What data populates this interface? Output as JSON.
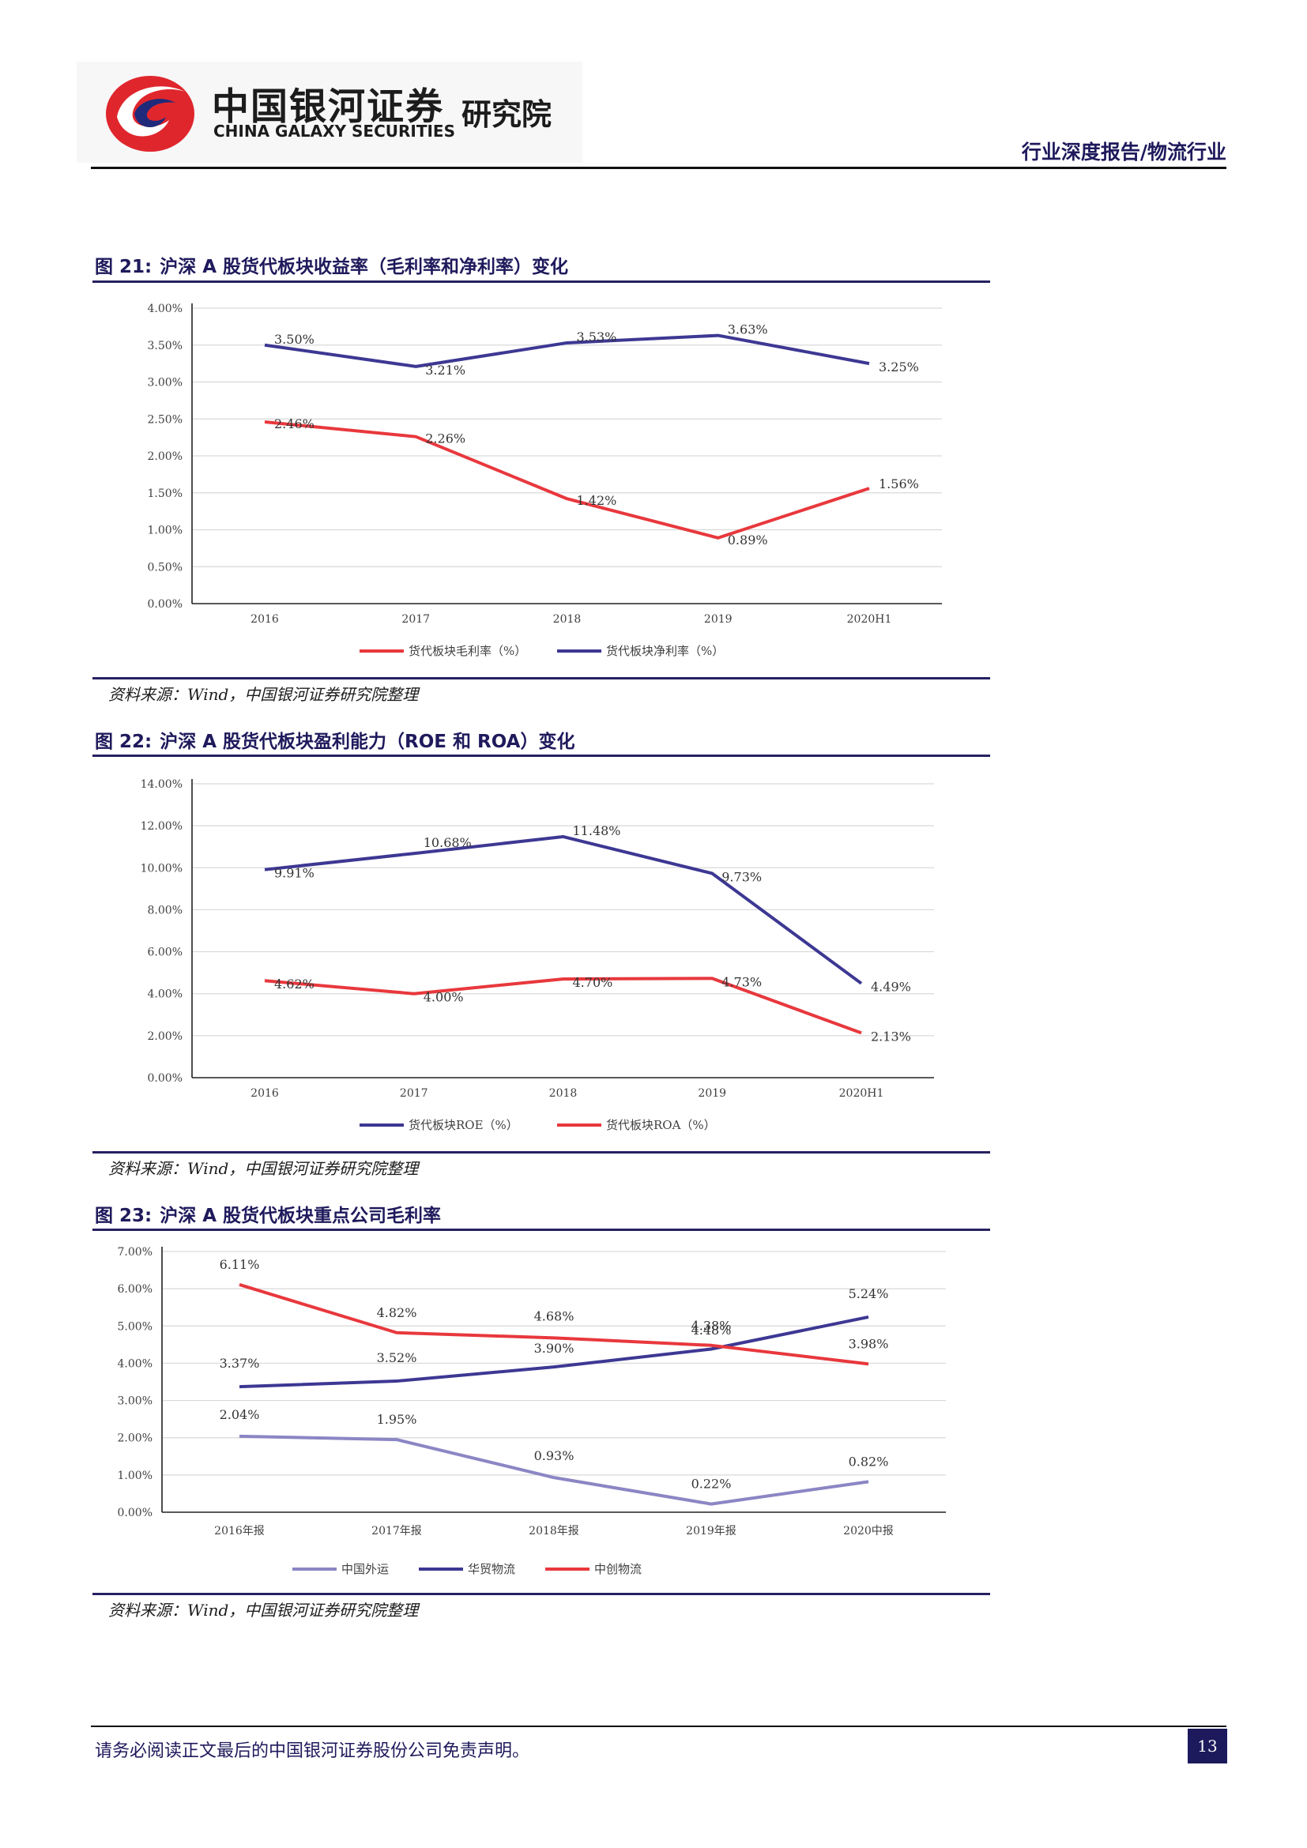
{
  "header": {
    "logo_cn": "中国银河证券",
    "logo_en": "CHINA GALAXY SECURITIES",
    "logo_institute": "研究院",
    "category": "行业深度报告/物流行业"
  },
  "figures": [
    {
      "number": "图 21:",
      "title": "沪深 A 股货代板块收益率（毛利率和净利率）变化",
      "source": "资料来源：Wind，中国银河证券研究院整理"
    },
    {
      "number": "图 22:",
      "title": "沪深 A 股货代板块盈利能力（ROE 和 ROA）变化",
      "source": "资料来源：Wind，中国银河证券研究院整理"
    },
    {
      "number": "图 23:",
      "title": "沪深 A 股货代板块重点公司毛利率",
      "source": "资料来源：Wind，中国银河证券研究院整理"
    }
  ],
  "chart_data": [
    {
      "type": "line",
      "categories": [
        "2016",
        "2017",
        "2018",
        "2019",
        "2020H1"
      ],
      "ylim": [
        0,
        4
      ],
      "yticks": [
        "0.00%",
        "0.50%",
        "1.00%",
        "1.50%",
        "2.00%",
        "2.50%",
        "3.00%",
        "3.50%",
        "4.00%"
      ],
      "grid": true,
      "legend_position": "bottom",
      "series": [
        {
          "name": "货代板块毛利率（%）",
          "color": "#e8383d",
          "values": [
            2.46,
            2.26,
            1.42,
            0.89,
            1.56
          ],
          "labels": [
            "2.46%",
            "2.26%",
            "1.42%",
            "0.89%",
            "1.56%"
          ]
        },
        {
          "name": "货代板块净利率（%）",
          "color": "#3d3893",
          "values": [
            3.5,
            3.21,
            3.53,
            3.63,
            3.25
          ],
          "labels": [
            "3.50%",
            "3.21%",
            "3.53%",
            "3.63%",
            "3.25%"
          ]
        }
      ]
    },
    {
      "type": "line",
      "categories": [
        "2016",
        "2017",
        "2018",
        "2019",
        "2020H1"
      ],
      "ylim": [
        0,
        14
      ],
      "yticks": [
        "0.00%",
        "2.00%",
        "4.00%",
        "6.00%",
        "8.00%",
        "10.00%",
        "12.00%",
        "14.00%"
      ],
      "grid": true,
      "legend_position": "bottom",
      "series": [
        {
          "name": "货代板块ROE（%）",
          "color": "#3d3893",
          "values": [
            9.91,
            10.68,
            11.48,
            9.73,
            4.49
          ],
          "labels": [
            "9.91%",
            "10.68%",
            "11.48%",
            "9.73%",
            "4.49%"
          ]
        },
        {
          "name": "货代板块ROA（%）",
          "color": "#e8383d",
          "values": [
            4.62,
            4.0,
            4.7,
            4.73,
            2.13
          ],
          "labels": [
            "4.62%",
            "4.00%",
            "4.70%",
            "4.73%",
            "2.13%"
          ]
        }
      ]
    },
    {
      "type": "line",
      "categories": [
        "2016年报",
        "2017年报",
        "2018年报",
        "2019年报",
        "2020中报"
      ],
      "ylim": [
        0,
        7
      ],
      "yticks": [
        "0.00%",
        "1.00%",
        "2.00%",
        "3.00%",
        "4.00%",
        "5.00%",
        "6.00%",
        "7.00%"
      ],
      "grid": true,
      "legend_position": "bottom",
      "series": [
        {
          "name": "中国外运",
          "color": "#8b86c4",
          "values": [
            2.04,
            1.95,
            0.93,
            0.22,
            0.82
          ],
          "labels": [
            "2.04%",
            "1.95%",
            "0.93%",
            "0.22%",
            "0.82%"
          ]
        },
        {
          "name": "华贸物流",
          "color": "#3d3893",
          "values": [
            3.37,
            3.52,
            3.9,
            4.38,
            5.24
          ],
          "labels": [
            "3.37%",
            "3.52%",
            "3.90%",
            "4.38%",
            "5.24%"
          ]
        },
        {
          "name": "中创物流",
          "color": "#e8383d",
          "values": [
            6.11,
            4.82,
            4.68,
            4.48,
            3.98
          ],
          "labels": [
            "6.11%",
            "4.82%",
            "4.68%",
            "4.48%",
            "3.98%"
          ]
        }
      ]
    }
  ],
  "footer": {
    "disclaimer": "请务必阅读正文最后的中国银河证券股份公司免责声明。",
    "page_number": "13"
  }
}
